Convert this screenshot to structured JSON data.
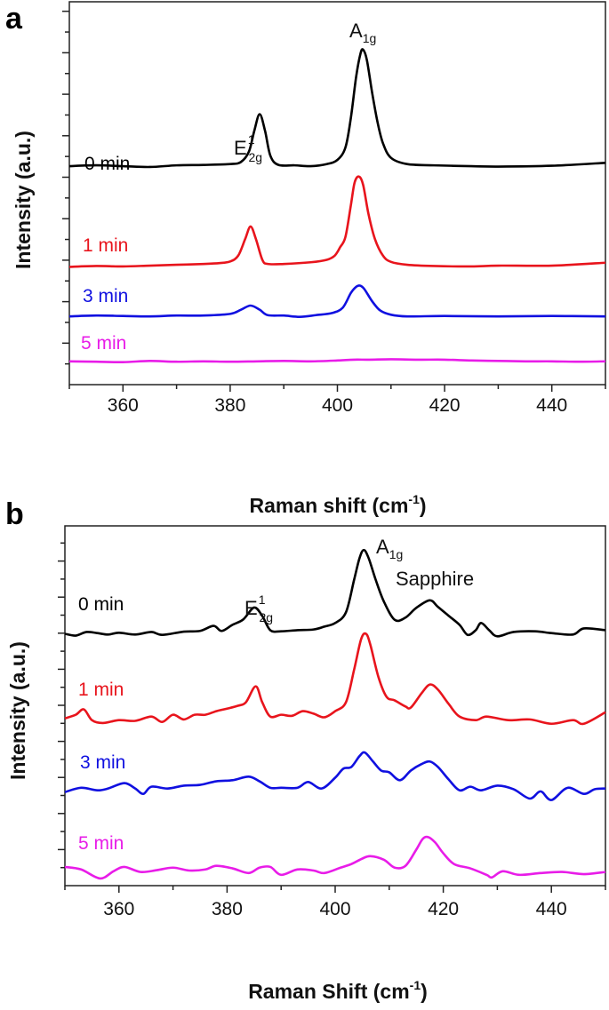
{
  "chart_data": [
    {
      "type": "line",
      "panel": "a",
      "xlabel": "Raman shift (cm",
      "xlabel_sup": "-1",
      "xlabel_end": ")",
      "ylabel": "Intensity (a.u.)",
      "xlim": [
        350,
        450
      ],
      "ylim": [
        0,
        9.2
      ],
      "xticks": [
        360,
        380,
        400,
        420,
        440
      ],
      "grid": false,
      "annotations": {
        "e2g": {
          "main": "E",
          "sup": "1",
          "sub": "2g"
        },
        "a1g": {
          "main": "A",
          "sub": "1g"
        }
      },
      "series": [
        {
          "name": "0 min",
          "color": "#000000",
          "x": [
            350,
            355,
            360,
            365,
            370,
            375,
            380,
            382,
            383.5,
            384.5,
            385.5,
            386.5,
            387.5,
            389,
            392,
            395,
            398,
            400,
            401.5,
            402.5,
            403.5,
            404.3,
            404.8,
            405.5,
            406.5,
            407.5,
            408.5,
            410,
            413,
            418,
            425,
            430,
            440,
            450
          ],
          "y": [
            5.25,
            5.27,
            5.25,
            5.23,
            5.27,
            5.28,
            5.3,
            5.35,
            5.6,
            6.1,
            6.5,
            6.1,
            5.5,
            5.28,
            5.27,
            5.25,
            5.3,
            5.4,
            5.7,
            6.4,
            7.4,
            7.95,
            8.05,
            7.8,
            7.0,
            6.3,
            5.8,
            5.45,
            5.3,
            5.27,
            5.25,
            5.24,
            5.26,
            5.33
          ]
        },
        {
          "name": "1 min",
          "color": "#e8141c",
          "x": [
            350,
            355,
            360,
            365,
            370,
            375,
            378,
            380,
            381.5,
            382.8,
            383.8,
            384.8,
            386,
            387,
            390,
            395,
            398,
            399.5,
            400.5,
            401.5,
            402.5,
            403.2,
            404,
            404.8,
            405.8,
            407,
            408.5,
            410,
            413,
            418,
            425,
            430,
            440,
            450
          ],
          "y": [
            2.83,
            2.85,
            2.84,
            2.86,
            2.88,
            2.9,
            2.92,
            2.96,
            3.1,
            3.5,
            3.8,
            3.5,
            3.0,
            2.9,
            2.9,
            2.94,
            3.0,
            3.1,
            3.3,
            3.55,
            4.3,
            4.85,
            5.0,
            4.8,
            4.1,
            3.5,
            3.1,
            2.95,
            2.88,
            2.85,
            2.84,
            2.86,
            2.86,
            2.93
          ]
        },
        {
          "name": "3 min",
          "color": "#1010e0",
          "x": [
            350,
            355,
            360,
            365,
            370,
            375,
            380,
            382,
            383.8,
            385.5,
            387,
            390,
            393,
            396,
            399,
            401,
            402.5,
            403.5,
            404.2,
            405,
            406.5,
            408,
            410,
            413,
            420,
            430,
            440,
            450
          ],
          "y": [
            1.64,
            1.66,
            1.65,
            1.64,
            1.66,
            1.66,
            1.7,
            1.8,
            1.9,
            1.8,
            1.67,
            1.66,
            1.63,
            1.67,
            1.72,
            1.85,
            2.2,
            2.35,
            2.38,
            2.3,
            2.0,
            1.78,
            1.68,
            1.64,
            1.65,
            1.64,
            1.65,
            1.64
          ]
        },
        {
          "name": "5 min",
          "color": "#e81ce8",
          "x": [
            350,
            355,
            360,
            365,
            370,
            375,
            380,
            385,
            390,
            395,
            400,
            403,
            406,
            410,
            415,
            420,
            425,
            430,
            435,
            440,
            445,
            450
          ],
          "y": [
            0.56,
            0.55,
            0.54,
            0.57,
            0.55,
            0.56,
            0.55,
            0.56,
            0.57,
            0.56,
            0.58,
            0.6,
            0.6,
            0.61,
            0.6,
            0.6,
            0.58,
            0.57,
            0.56,
            0.56,
            0.55,
            0.56
          ]
        }
      ]
    },
    {
      "type": "line",
      "panel": "b",
      "xlabel": "Raman Shift (cm",
      "xlabel_sup": "-1",
      "xlabel_end": ")",
      "ylabel": "Intensity (a.u.)",
      "xlim": [
        350,
        450
      ],
      "ylim": [
        0,
        10
      ],
      "xticks": [
        360,
        380,
        400,
        420,
        440
      ],
      "grid": false,
      "annotations": {
        "e2g": {
          "main": "E",
          "sup": "1",
          "sub": "2g"
        },
        "a1g": {
          "main": "A",
          "sub": "1g"
        },
        "sapphire": "Sapphire"
      },
      "series": [
        {
          "name": "0 min",
          "color": "#000000",
          "x": [
            350,
            352,
            354,
            356,
            358,
            360,
            363,
            366,
            368,
            372,
            375,
            377.5,
            379,
            381,
            383,
            385,
            386.5,
            388,
            390,
            393,
            396,
            398,
            400,
            402,
            403.5,
            404.5,
            405.3,
            406.2,
            407.5,
            409,
            411,
            413,
            415,
            417.5,
            419,
            421,
            423,
            424.5,
            426,
            427,
            428.5,
            430,
            433,
            437,
            440,
            444,
            446,
            450
          ],
          "y": [
            7.0,
            6.95,
            7.05,
            7.02,
            6.98,
            7.03,
            6.98,
            7.05,
            6.97,
            7.06,
            7.08,
            7.22,
            7.08,
            7.25,
            7.4,
            7.73,
            7.5,
            7.1,
            7.07,
            7.1,
            7.12,
            7.2,
            7.3,
            7.6,
            8.5,
            9.1,
            9.33,
            9.1,
            8.5,
            7.9,
            7.39,
            7.45,
            7.72,
            7.93,
            7.75,
            7.5,
            7.25,
            6.97,
            7.1,
            7.3,
            7.1,
            6.93,
            7.05,
            7.07,
            7.02,
            6.98,
            7.15,
            7.1
          ]
        },
        {
          "name": "1 min",
          "color": "#e8141c",
          "x": [
            350,
            352,
            353.5,
            355,
            357,
            360,
            363,
            366,
            368,
            370,
            372,
            374,
            376,
            378,
            380,
            382,
            383.5,
            385.3,
            386.5,
            388,
            390,
            392,
            394,
            396,
            398,
            400,
            402,
            403.5,
            404.8,
            405.7,
            406.5,
            408,
            409.5,
            411,
            413,
            414,
            416,
            417.5,
            419,
            421,
            423,
            426,
            428,
            432,
            436,
            440,
            444,
            446,
            450
          ],
          "y": [
            4.65,
            4.75,
            4.9,
            4.6,
            4.52,
            4.6,
            4.58,
            4.7,
            4.55,
            4.75,
            4.62,
            4.75,
            4.75,
            4.85,
            4.92,
            5.0,
            5.1,
            5.54,
            5.1,
            4.7,
            4.75,
            4.72,
            4.85,
            4.78,
            4.68,
            4.85,
            5.1,
            6.0,
            6.85,
            7.0,
            6.7,
            5.8,
            5.25,
            5.15,
            4.98,
            4.95,
            5.35,
            5.59,
            5.45,
            5.05,
            4.7,
            4.6,
            4.7,
            4.6,
            4.62,
            4.5,
            4.6,
            4.5,
            4.82
          ]
        },
        {
          "name": "3 min",
          "color": "#1010e0",
          "x": [
            350,
            353,
            356,
            358,
            361,
            363,
            364.5,
            366,
            369,
            372,
            375,
            378,
            381,
            384,
            386,
            388,
            390,
            393,
            395,
            397.5,
            400,
            401.5,
            403,
            404.5,
            405.5,
            407,
            408.5,
            410,
            412,
            414,
            416,
            417.5,
            419,
            421,
            423,
            425,
            427,
            430,
            433,
            436,
            438,
            440,
            443,
            446,
            448,
            450
          ],
          "y": [
            2.6,
            2.72,
            2.65,
            2.7,
            2.85,
            2.7,
            2.55,
            2.75,
            2.7,
            2.78,
            2.8,
            2.9,
            2.93,
            3.03,
            2.9,
            2.72,
            2.72,
            2.72,
            2.88,
            2.7,
            3.0,
            3.25,
            3.3,
            3.6,
            3.7,
            3.45,
            3.2,
            3.15,
            2.93,
            3.2,
            3.38,
            3.45,
            3.3,
            2.95,
            2.65,
            2.75,
            2.65,
            2.78,
            2.68,
            2.42,
            2.62,
            2.38,
            2.72,
            2.55,
            2.68,
            2.7
          ]
        },
        {
          "name": "5 min",
          "color": "#e81ce8",
          "x": [
            350,
            353,
            356.5,
            359,
            361,
            364,
            367,
            370,
            373,
            376,
            378,
            381,
            384,
            386,
            388,
            390,
            393,
            396,
            398,
            401,
            403,
            405,
            406.5,
            409,
            411,
            413,
            415,
            416.2,
            417.2,
            418.5,
            420,
            422,
            425,
            428,
            429,
            431,
            434,
            438,
            442,
            446,
            450
          ],
          "y": [
            0.52,
            0.45,
            0.2,
            0.4,
            0.52,
            0.38,
            0.43,
            0.5,
            0.42,
            0.45,
            0.55,
            0.48,
            0.35,
            0.5,
            0.52,
            0.3,
            0.45,
            0.42,
            0.35,
            0.5,
            0.6,
            0.75,
            0.82,
            0.72,
            0.5,
            0.55,
            1.0,
            1.3,
            1.35,
            1.2,
            0.9,
            0.6,
            0.48,
            0.3,
            0.23,
            0.4,
            0.3,
            0.35,
            0.38,
            0.32,
            0.38
          ]
        }
      ]
    }
  ]
}
